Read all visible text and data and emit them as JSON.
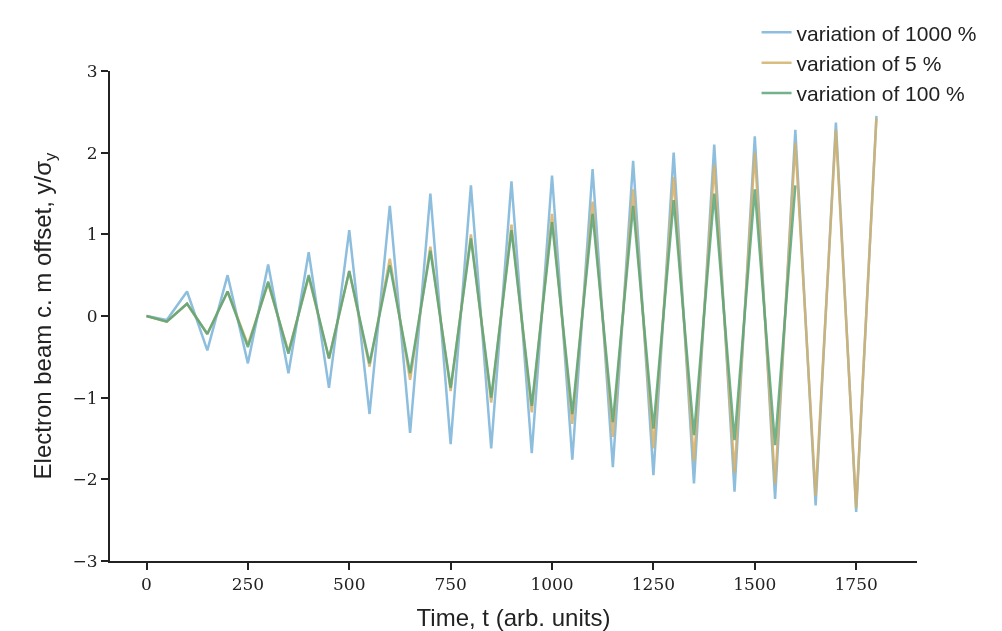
{
  "chart_data": {
    "type": "line",
    "xlabel": "Time, t (arb. units)",
    "ylabel": "Electron beam c. m offset, y/σ$_{y}$",
    "xlim": [
      -90,
      1900
    ],
    "ylim": [
      -3,
      3
    ],
    "xticks": [
      0,
      250,
      500,
      750,
      1000,
      1250,
      1500,
      1750
    ],
    "yticks": [
      {
        "value": -3,
        "label": "−3"
      },
      {
        "value": -2,
        "label": "−2"
      },
      {
        "value": -1,
        "label": "−1"
      },
      0,
      1,
      2,
      3
    ],
    "grid": false,
    "legend": "top right",
    "marker": "none",
    "line_style": "solid",
    "series": [
      {
        "name": "variation of 1000 %",
        "color": "#7ab3d8",
        "x": [
          0,
          50,
          100,
          150,
          200,
          250,
          300,
          350,
          400,
          450,
          500,
          550,
          600,
          650,
          700,
          750,
          800,
          850,
          900,
          950,
          1000,
          1050,
          1100,
          1150,
          1200,
          1250,
          1300,
          1350,
          1400,
          1450,
          1500,
          1550,
          1600,
          1650,
          1700,
          1750,
          1800
        ],
        "values": [
          0,
          -0.05,
          0.3,
          -0.42,
          0.5,
          -0.58,
          0.63,
          -0.7,
          0.78,
          -0.88,
          1.05,
          -1.2,
          1.35,
          -1.43,
          1.5,
          -1.57,
          1.6,
          -1.62,
          1.65,
          -1.68,
          1.72,
          -1.76,
          1.8,
          -1.85,
          1.9,
          -1.95,
          2.0,
          -2.05,
          2.1,
          -2.15,
          2.2,
          -2.24,
          2.28,
          -2.32,
          2.37,
          -2.4,
          2.45
        ]
      },
      {
        "name": "variation of 5 %",
        "color": "#d4b06a",
        "x": [
          0,
          50,
          100,
          150,
          200,
          250,
          300,
          350,
          400,
          450,
          500,
          550,
          600,
          650,
          700,
          750,
          800,
          850,
          900,
          950,
          1000,
          1050,
          1100,
          1150,
          1200,
          1250,
          1300,
          1350,
          1400,
          1450,
          1500,
          1550,
          1600,
          1650,
          1700,
          1750,
          1800
        ],
        "values": [
          0,
          -0.07,
          0.15,
          -0.22,
          0.3,
          -0.35,
          0.4,
          -0.44,
          0.48,
          -0.52,
          0.55,
          -0.62,
          0.7,
          -0.78,
          0.85,
          -0.92,
          1.0,
          -1.06,
          1.12,
          -1.18,
          1.25,
          -1.32,
          1.4,
          -1.48,
          1.55,
          -1.62,
          1.7,
          -1.78,
          1.85,
          -1.92,
          2.0,
          -2.06,
          2.12,
          -2.2,
          2.28,
          -2.35,
          2.42
        ]
      },
      {
        "name": "variation of 100 %",
        "color": "#5aa578",
        "x": [
          0,
          50,
          100,
          150,
          200,
          250,
          300,
          350,
          400,
          450,
          500,
          550,
          600,
          650,
          700,
          750,
          800,
          850,
          900,
          950,
          1000,
          1050,
          1100,
          1150,
          1200,
          1250,
          1300,
          1350,
          1400,
          1450,
          1500,
          1550,
          1600
        ],
        "values": [
          0,
          -0.07,
          0.15,
          -0.22,
          0.3,
          -0.38,
          0.42,
          -0.46,
          0.5,
          -0.52,
          0.55,
          -0.58,
          0.62,
          -0.7,
          0.8,
          -0.88,
          0.95,
          -1.0,
          1.05,
          -1.1,
          1.15,
          -1.2,
          1.25,
          -1.3,
          1.35,
          -1.38,
          1.42,
          -1.46,
          1.5,
          -1.52,
          1.55,
          -1.58,
          1.6
        ]
      }
    ]
  }
}
